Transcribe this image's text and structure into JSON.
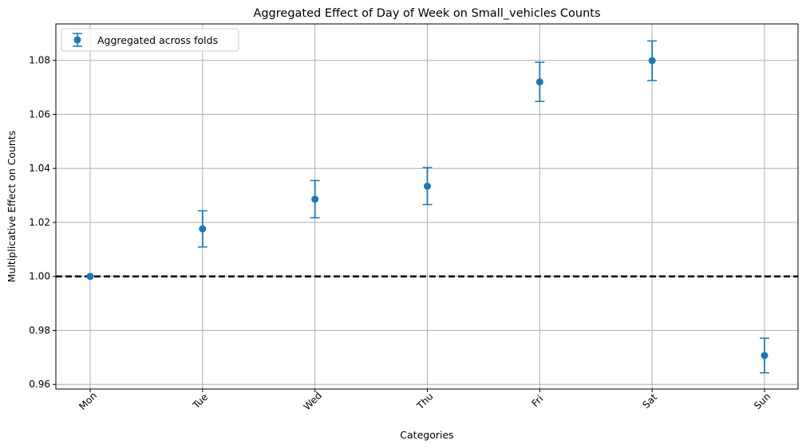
{
  "chart_data": {
    "type": "scatter",
    "title": "Aggregated Effect of Day of Week on Small_vehicles Counts",
    "xlabel": "Categories",
    "ylabel": "Multiplicative Effect on Counts",
    "categories": [
      "Mon",
      "Tue",
      "Wed",
      "Thu",
      "Fri",
      "Sat",
      "Sun"
    ],
    "series": [
      {
        "name": "Aggregated across folds",
        "values": [
          1.0,
          1.0176,
          1.0286,
          1.0334,
          1.072,
          1.0799,
          0.9707
        ],
        "error_lower": [
          1.0,
          1.0109,
          1.0217,
          1.0266,
          1.0648,
          1.0725,
          0.9643
        ],
        "error_upper": [
          1.0,
          1.0243,
          1.0355,
          1.0403,
          1.0793,
          1.0872,
          0.9771
        ],
        "color": "#1f77b4"
      }
    ],
    "reference_line": {
      "y": 1.0,
      "style": "dashed",
      "color": "#000000"
    },
    "ylim": [
      0.9583,
      1.0935
    ],
    "yticks": [
      0.96,
      0.98,
      1.0,
      1.02,
      1.04,
      1.06,
      1.08
    ],
    "ytick_labels": [
      "0.96",
      "0.98",
      "1.00",
      "1.02",
      "1.04",
      "1.06",
      "1.08"
    ],
    "xtick_rotation": 45,
    "grid": true,
    "legend_position": "top-left"
  }
}
